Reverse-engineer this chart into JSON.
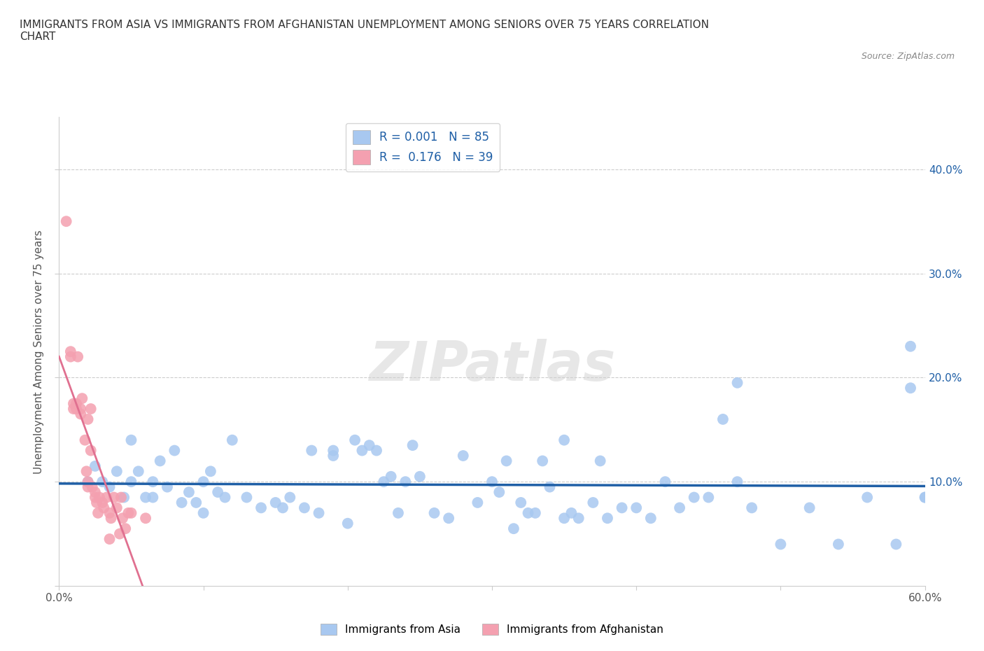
{
  "title": "IMMIGRANTS FROM ASIA VS IMMIGRANTS FROM AFGHANISTAN UNEMPLOYMENT AMONG SENIORS OVER 75 YEARS CORRELATION\nCHART",
  "source": "Source: ZipAtlas.com",
  "ylabel": "Unemployment Among Seniors over 75 years",
  "xlim": [
    0.0,
    0.6
  ],
  "ylim": [
    0.0,
    0.45
  ],
  "watermark": "ZIPatlas",
  "legend_R_asia": "0.001",
  "legend_N_asia": "85",
  "legend_R_afghan": "0.176",
  "legend_N_afghan": "39",
  "asia_color": "#a8c8f0",
  "afghan_color": "#f4a0b0",
  "regression_asia_color": "#1f5fa6",
  "regression_afghan_color": "#e07090",
  "gridline_color": "#cccccc",
  "asia_scatter_x": [
    0.02,
    0.025,
    0.03,
    0.035,
    0.04,
    0.045,
    0.05,
    0.05,
    0.055,
    0.06,
    0.065,
    0.065,
    0.07,
    0.075,
    0.08,
    0.085,
    0.09,
    0.095,
    0.1,
    0.1,
    0.105,
    0.11,
    0.115,
    0.12,
    0.13,
    0.14,
    0.15,
    0.155,
    0.16,
    0.17,
    0.175,
    0.18,
    0.19,
    0.19,
    0.2,
    0.205,
    0.21,
    0.215,
    0.22,
    0.225,
    0.23,
    0.235,
    0.24,
    0.245,
    0.25,
    0.26,
    0.27,
    0.28,
    0.29,
    0.3,
    0.305,
    0.31,
    0.315,
    0.32,
    0.325,
    0.33,
    0.335,
    0.34,
    0.35,
    0.355,
    0.36,
    0.37,
    0.375,
    0.38,
    0.39,
    0.4,
    0.41,
    0.42,
    0.43,
    0.44,
    0.45,
    0.46,
    0.47,
    0.48,
    0.5,
    0.52,
    0.54,
    0.56,
    0.58,
    0.59,
    0.59,
    0.6,
    0.6,
    0.47,
    0.35
  ],
  "asia_scatter_y": [
    0.1,
    0.115,
    0.1,
    0.095,
    0.11,
    0.085,
    0.14,
    0.1,
    0.11,
    0.085,
    0.1,
    0.085,
    0.12,
    0.095,
    0.13,
    0.08,
    0.09,
    0.08,
    0.1,
    0.07,
    0.11,
    0.09,
    0.085,
    0.14,
    0.085,
    0.075,
    0.08,
    0.075,
    0.085,
    0.075,
    0.13,
    0.07,
    0.125,
    0.13,
    0.06,
    0.14,
    0.13,
    0.135,
    0.13,
    0.1,
    0.105,
    0.07,
    0.1,
    0.135,
    0.105,
    0.07,
    0.065,
    0.125,
    0.08,
    0.1,
    0.09,
    0.12,
    0.055,
    0.08,
    0.07,
    0.07,
    0.12,
    0.095,
    0.065,
    0.07,
    0.065,
    0.08,
    0.12,
    0.065,
    0.075,
    0.075,
    0.065,
    0.1,
    0.075,
    0.085,
    0.085,
    0.16,
    0.1,
    0.075,
    0.04,
    0.075,
    0.04,
    0.085,
    0.04,
    0.23,
    0.19,
    0.085,
    0.085,
    0.195,
    0.14
  ],
  "afghan_scatter_x": [
    0.005,
    0.008,
    0.008,
    0.01,
    0.01,
    0.012,
    0.012,
    0.013,
    0.015,
    0.015,
    0.016,
    0.018,
    0.019,
    0.02,
    0.02,
    0.02,
    0.022,
    0.022,
    0.023,
    0.025,
    0.025,
    0.026,
    0.027,
    0.028,
    0.03,
    0.031,
    0.033,
    0.035,
    0.035,
    0.036,
    0.038,
    0.04,
    0.042,
    0.043,
    0.044,
    0.046,
    0.048,
    0.05,
    0.06
  ],
  "afghan_scatter_y": [
    0.35,
    0.22,
    0.225,
    0.17,
    0.175,
    0.17,
    0.175,
    0.22,
    0.165,
    0.17,
    0.18,
    0.14,
    0.11,
    0.095,
    0.16,
    0.1,
    0.17,
    0.13,
    0.095,
    0.085,
    0.09,
    0.08,
    0.07,
    0.085,
    0.08,
    0.075,
    0.085,
    0.045,
    0.07,
    0.065,
    0.085,
    0.075,
    0.05,
    0.085,
    0.065,
    0.055,
    0.07,
    0.07,
    0.065
  ]
}
